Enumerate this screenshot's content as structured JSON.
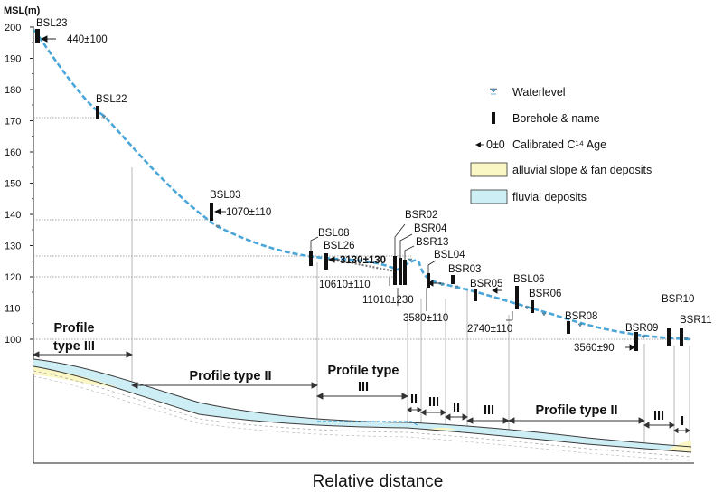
{
  "y_axis": {
    "label": "MSL(m)",
    "ticks": [
      "200",
      "190",
      "180",
      "170",
      "160",
      "150",
      "140",
      "130",
      "120",
      "110",
      "100"
    ]
  },
  "x_axis": {
    "label": "Relative distance"
  },
  "boreholes": [
    "BSL23",
    "BSL22",
    "BSL03",
    "BSL08",
    "BSL26",
    "BSR02",
    "BSR04",
    "BSR13",
    "BSL04",
    "BSR03",
    "BSR05",
    "BSL06",
    "BSR06",
    "BSR08",
    "BSR09",
    "BSR10",
    "BSR11"
  ],
  "ages": [
    "440±100",
    "1070±110",
    "3130±130",
    "10610±110",
    "11010±230",
    "3580±110",
    "2740±110",
    "3560±90"
  ],
  "legend": {
    "waterlevel": "Waterlevel",
    "borehole": "Borehole & name",
    "age_symbol": "0±0",
    "age": "Calibrated C¹⁴ Age",
    "alluvial": "alluvial slope & fan deposits",
    "fluvial": "fluvial deposits",
    "colors": {
      "alluvial": "#fbf7c4",
      "fluvial": "#cdeef5",
      "water": "#4aa6d8"
    }
  },
  "profile_labels": {
    "p_iii_left_a": "Profile",
    "p_iii_left_b": "type III",
    "p_ii_1": "Profile type II",
    "p_iii_mid_a": "Profile type",
    "p_iii_mid_b": "III",
    "s1": "II",
    "s2": "III",
    "s3": "II",
    "s4": "III",
    "p_ii_2": "Profile type II",
    "s5": "III",
    "s6": "I"
  }
}
